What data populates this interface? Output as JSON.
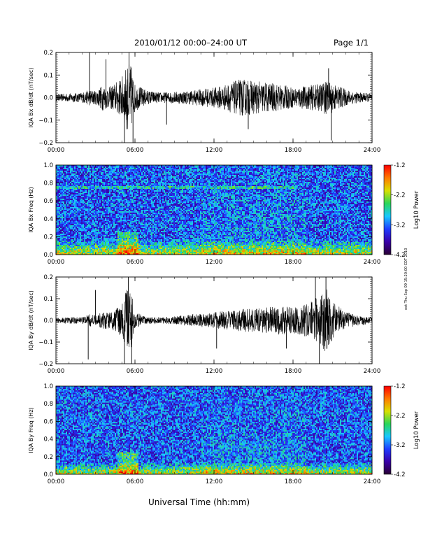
{
  "header": {
    "title": "2010/01/12  00:00–24:00 UT",
    "page": "Page 1/1"
  },
  "footer": {
    "xlabel": "Universal Time (hh:mm)"
  },
  "stamp": "eot Thu Sep 09 15:20:00 CDT 2010",
  "colors": {
    "trace": "#000000",
    "axes": "#000000"
  },
  "colorbar": {
    "title": "Log10 Power",
    "ticks": [
      "-1.2",
      "-2.2",
      "-3.2",
      "-4.2"
    ],
    "colors": [
      "#2a0033",
      "#3a00a8",
      "#1f3cff",
      "#19c8ff",
      "#2bd65a",
      "#d8e000",
      "#ff7a00",
      "#ff0000"
    ]
  },
  "chart_data": [
    {
      "type": "line",
      "ylabel": "IQA Bx dB/dt (nT/sec)",
      "xlim": [
        "00:00",
        "24:00"
      ],
      "ylim": [
        -0.2,
        0.2
      ],
      "xticks": [
        "00:00",
        "06:00",
        "12:00",
        "18:00",
        "24:00"
      ],
      "yticks": [
        "0.2",
        "0.1",
        "0.0",
        "−0.1",
        "−0.2"
      ],
      "series": [
        {
          "x_hours": [
            0,
            1,
            2,
            2.6,
            3,
            3.6,
            4,
            4.5,
            5,
            5.4,
            5.7,
            6,
            7,
            8,
            9,
            10,
            11,
            12,
            13,
            14,
            15,
            16,
            17,
            18,
            19,
            20,
            20.5,
            21,
            22,
            23,
            24
          ],
          "envelope": [
            0.02,
            0.025,
            0.03,
            0.05,
            0.04,
            0.08,
            0.06,
            0.09,
            0.12,
            0.2,
            0.2,
            0.08,
            0.04,
            0.03,
            0.035,
            0.04,
            0.05,
            0.06,
            0.08,
            0.11,
            0.1,
            0.09,
            0.08,
            0.06,
            0.07,
            0.08,
            0.1,
            0.09,
            0.05,
            0.03,
            0.025
          ],
          "spikes": [
            [
              2.55,
              0.2
            ],
            [
              3.8,
              0.17
            ],
            [
              5.2,
              -0.2
            ],
            [
              5.55,
              0.2
            ],
            [
              5.85,
              -0.2
            ],
            [
              8.4,
              -0.12
            ],
            [
              14.6,
              -0.14
            ],
            [
              20.7,
              0.13
            ],
            [
              20.9,
              -0.19
            ]
          ]
        }
      ]
    },
    {
      "type": "heatmap",
      "ylabel": "IQA Bx Freq (Hz)",
      "xlim": [
        "00:00",
        "24:00"
      ],
      "ylim": [
        0.0,
        1.0
      ],
      "xticks": [
        "00:00",
        "06:00",
        "12:00",
        "18:00",
        "24:00"
      ],
      "yticks": [
        "1.0",
        "0.8",
        "0.6",
        "0.4",
        "0.2",
        "0.0"
      ],
      "zlim": [
        -4.2,
        -1.2
      ],
      "zlabel": "Log10 Power",
      "features": {
        "line_hz": 0.75,
        "low_freq_band_hz": 0.15
      }
    },
    {
      "type": "line",
      "ylabel": "IQA By dB/dt (nT/sec)",
      "xlim": [
        "00:00",
        "24:00"
      ],
      "ylim": [
        -0.2,
        0.2
      ],
      "xticks": [
        "00:00",
        "06:00",
        "12:00",
        "18:00",
        "24:00"
      ],
      "yticks": [
        "0.2",
        "0.1",
        "0.0",
        "−0.1",
        "−0.2"
      ],
      "series": [
        {
          "x_hours": [
            0,
            1,
            2,
            2.6,
            3,
            3.6,
            4,
            4.5,
            5,
            5.4,
            5.7,
            6,
            7,
            8,
            9,
            10,
            11,
            12,
            13,
            14,
            15,
            16,
            17,
            18,
            19,
            20,
            20.5,
            21,
            22,
            23,
            24
          ],
          "envelope": [
            0.015,
            0.02,
            0.02,
            0.04,
            0.03,
            0.06,
            0.05,
            0.07,
            0.1,
            0.2,
            0.2,
            0.05,
            0.02,
            0.02,
            0.025,
            0.035,
            0.04,
            0.05,
            0.06,
            0.07,
            0.07,
            0.08,
            0.09,
            0.08,
            0.1,
            0.15,
            0.2,
            0.12,
            0.05,
            0.03,
            0.02
          ],
          "spikes": [
            [
              2.45,
              -0.18
            ],
            [
              3.0,
              0.14
            ],
            [
              5.2,
              -0.2
            ],
            [
              5.5,
              0.2
            ],
            [
              5.75,
              -0.2
            ],
            [
              12.2,
              -0.13
            ],
            [
              17.5,
              -0.13
            ],
            [
              19.7,
              0.2
            ],
            [
              20.0,
              -0.2
            ],
            [
              20.5,
              0.2
            ]
          ]
        }
      ]
    },
    {
      "type": "heatmap",
      "ylabel": "IQA By Freq (Hz)",
      "xlim": [
        "00:00",
        "24:00"
      ],
      "ylim": [
        0.0,
        1.0
      ],
      "xticks": [
        "00:00",
        "06:00",
        "12:00",
        "18:00",
        "24:00"
      ],
      "yticks": [
        "1.0",
        "0.8",
        "0.6",
        "0.4",
        "0.2",
        "0.0"
      ],
      "zlim": [
        -4.2,
        -1.2
      ],
      "zlabel": "Log10 Power",
      "features": {
        "low_freq_band_hz": 0.12
      }
    }
  ]
}
